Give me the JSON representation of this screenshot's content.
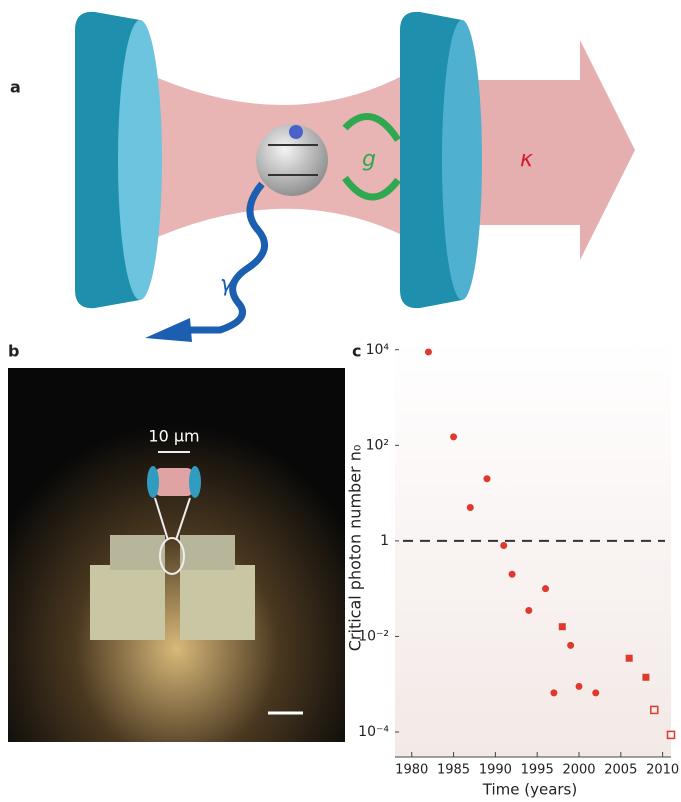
{
  "panel_a": {
    "label": "a",
    "coupling": "g",
    "cavity_decay": "κ",
    "atom_decay": "γ"
  },
  "panel_b": {
    "label": "b",
    "scale": "10 μm"
  },
  "chart_data": {
    "type": "scatter",
    "panel_label": "c",
    "x_label": "Time (years)",
    "y_label": "Critical photon number n₀",
    "xlim": [
      1978,
      2011
    ],
    "xticks": [
      1980,
      1985,
      1990,
      1995,
      2000,
      2005,
      2010
    ],
    "ylim": [
      3e-05,
      16000
    ],
    "log_y": true,
    "yticks": [
      {
        "value": 0.0001,
        "label": "10⁻⁴"
      },
      {
        "value": 0.01,
        "label": "10⁻²"
      },
      1,
      {
        "value": 100,
        "label": "10²"
      },
      {
        "value": 10000,
        "label": "10⁴"
      }
    ],
    "reference_line": 1,
    "series": [
      {
        "marker": "circle",
        "filled": true,
        "color": "#e0382c",
        "x": [
          1982,
          1985,
          1987,
          1989,
          1991,
          1992,
          1994,
          1996,
          1997,
          1999,
          2000,
          2002
        ],
        "values": [
          9000,
          150,
          5,
          20,
          0.8,
          0.2,
          0.035,
          0.1,
          0.00066,
          0.0065,
          0.0009,
          0.00066
        ]
      },
      {
        "marker": "square",
        "filled": true,
        "color": "#e0382c",
        "x": [
          1998,
          2006,
          2008
        ],
        "values": [
          0.016,
          0.0035,
          0.0014
        ]
      },
      {
        "marker": "square",
        "filled": false,
        "color": "#e0382c",
        "x": [
          2009,
          2011
        ],
        "values": [
          0.00029,
          8.7e-05
        ]
      }
    ]
  }
}
